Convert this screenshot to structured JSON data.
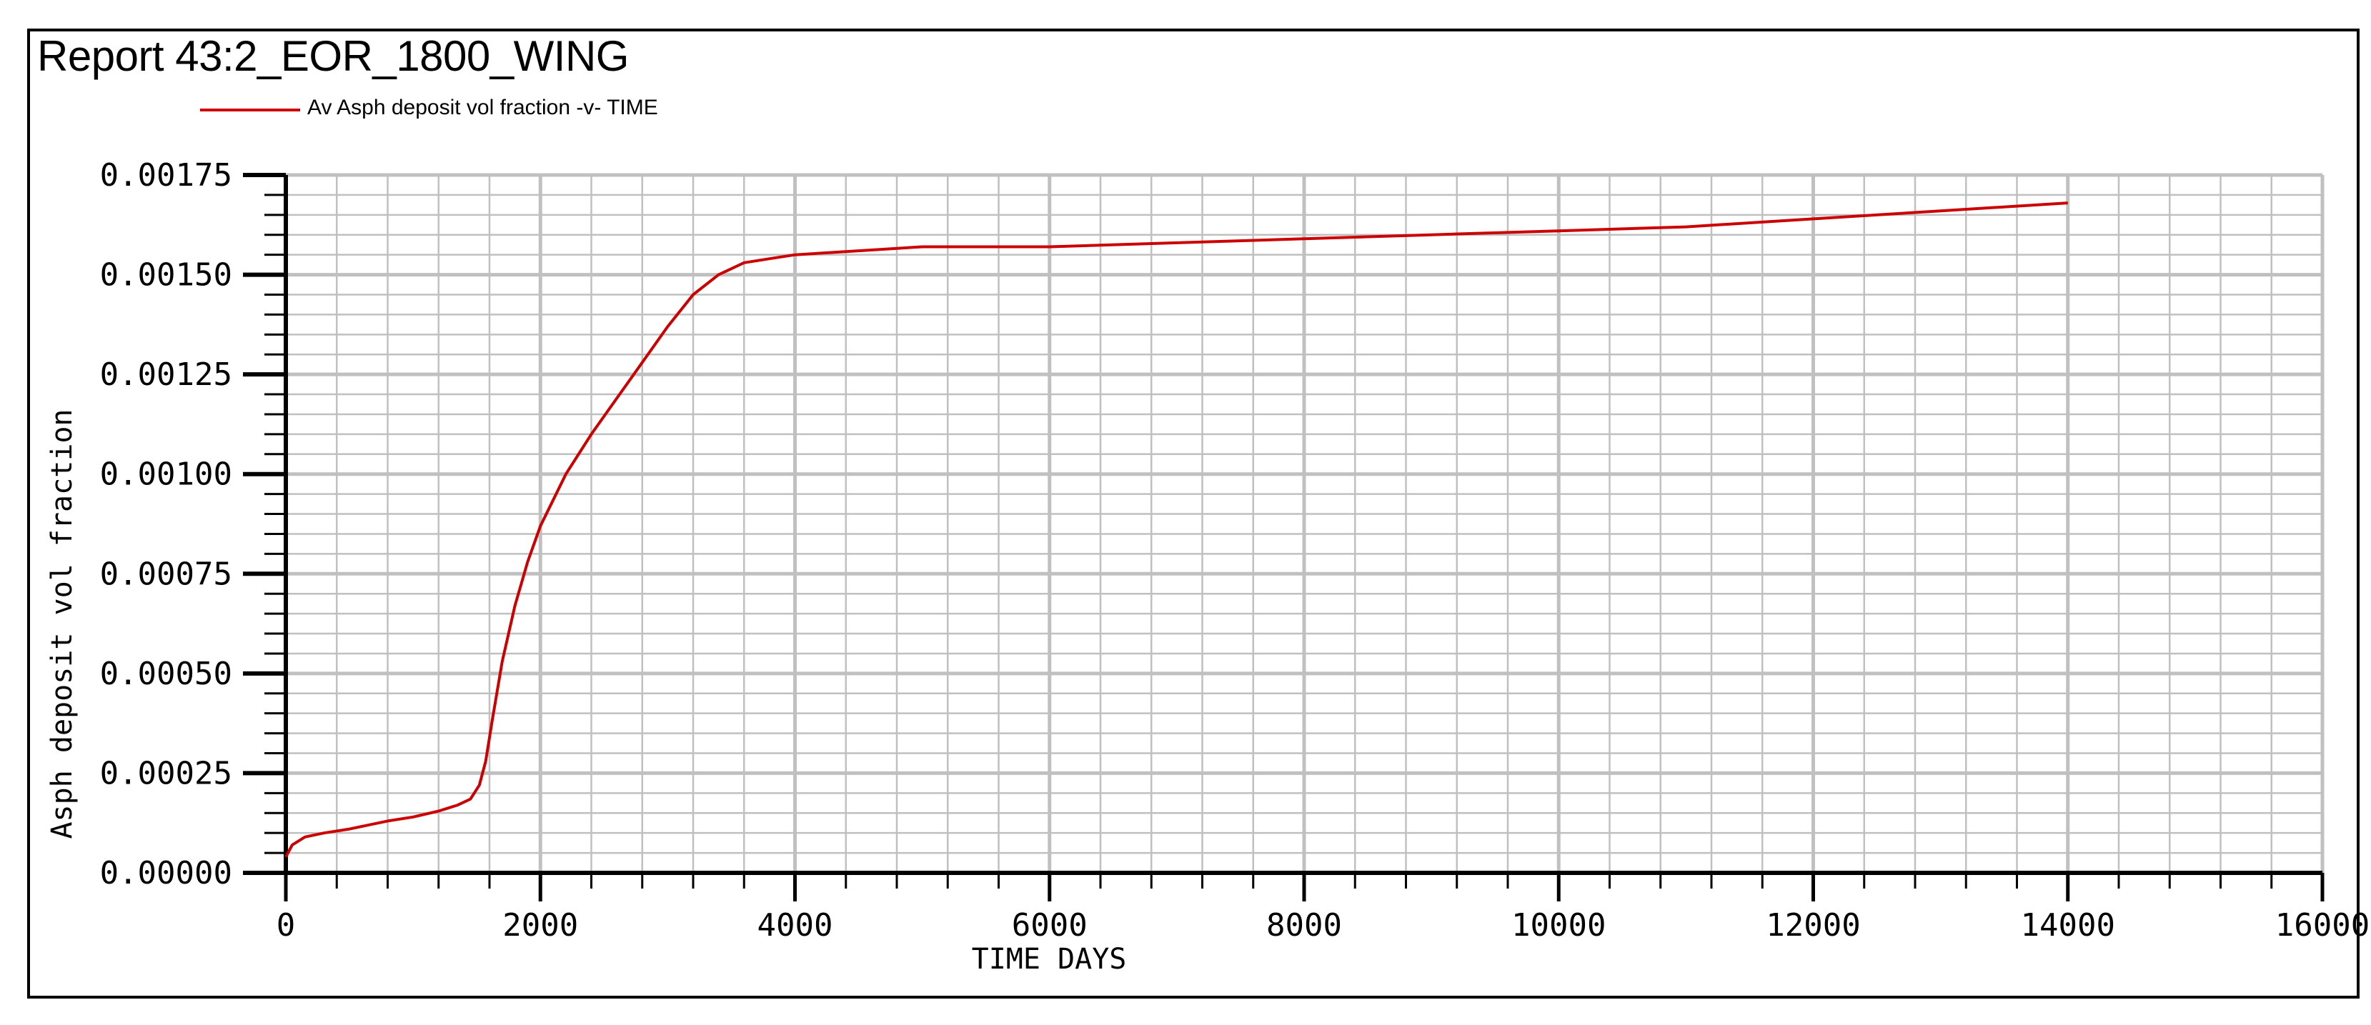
{
  "report": {
    "title": "Report 43:2_EOR_1800_WING"
  },
  "colors": {
    "series": "#cc0000",
    "grid": "#c0c0c0",
    "axis": "#000000"
  },
  "chart_data": {
    "type": "line",
    "title": "Report 43:2_EOR_1800_WING",
    "xlabel": "TIME  DAYS",
    "ylabel": "Asph deposit vol fraction",
    "xlim": [
      0,
      16000
    ],
    "ylim": [
      0,
      0.00175
    ],
    "x_ticks": [
      "0",
      "2000",
      "4000",
      "6000",
      "8000",
      "10000",
      "12000",
      "14000",
      "16000"
    ],
    "y_ticks": [
      "0.00000",
      "0.00025",
      "0.00050",
      "0.00075",
      "0.00100",
      "0.00125",
      "0.00150",
      "0.00175"
    ],
    "grid": true,
    "legend": "top-left",
    "series": [
      {
        "name": "Av Asph deposit vol fraction -v- TIME",
        "x": [
          0,
          50,
          150,
          300,
          500,
          800,
          1000,
          1200,
          1350,
          1450,
          1520,
          1570,
          1620,
          1700,
          1800,
          1900,
          2000,
          2200,
          2400,
          2600,
          2800,
          3000,
          3200,
          3400,
          3600,
          3800,
          4000,
          4500,
          5000,
          5500,
          6000,
          7000,
          8000,
          9000,
          10000,
          11000,
          12000,
          13000,
          14000
        ],
        "values": [
          4e-05,
          7e-05,
          9e-05,
          0.0001,
          0.00011,
          0.00013,
          0.00014,
          0.000155,
          0.00017,
          0.000185,
          0.00022,
          0.00028,
          0.00038,
          0.00053,
          0.00067,
          0.00078,
          0.00087,
          0.001,
          0.0011,
          0.00119,
          0.00128,
          0.00137,
          0.00145,
          0.0015,
          0.00153,
          0.00154,
          0.00155,
          0.00156,
          0.00157,
          0.00157,
          0.00157,
          0.00158,
          0.00159,
          0.0016,
          0.00161,
          0.00162,
          0.00164,
          0.00166,
          0.00168
        ]
      }
    ]
  }
}
